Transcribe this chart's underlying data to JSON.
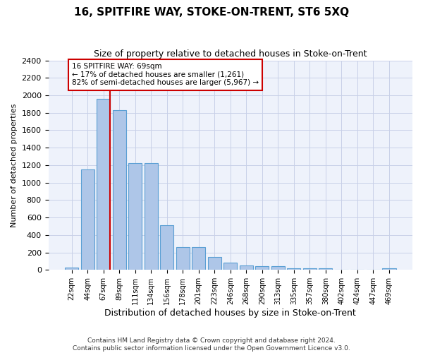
{
  "title": "16, SPITFIRE WAY, STOKE-ON-TRENT, ST6 5XQ",
  "subtitle": "Size of property relative to detached houses in Stoke-on-Trent",
  "xlabel": "Distribution of detached houses by size in Stoke-on-Trent",
  "ylabel": "Number of detached properties",
  "categories": [
    "22sqm",
    "44sqm",
    "67sqm",
    "89sqm",
    "111sqm",
    "134sqm",
    "156sqm",
    "178sqm",
    "201sqm",
    "223sqm",
    "246sqm",
    "268sqm",
    "290sqm",
    "313sqm",
    "335sqm",
    "357sqm",
    "380sqm",
    "402sqm",
    "424sqm",
    "447sqm",
    "469sqm"
  ],
  "values": [
    30,
    1150,
    1960,
    1830,
    1220,
    1220,
    510,
    265,
    265,
    150,
    80,
    50,
    45,
    45,
    20,
    15,
    20,
    5,
    5,
    5,
    20
  ],
  "bar_color": "#aec6e8",
  "bar_edge_color": "#5a9fd4",
  "property_bar_index": 2,
  "annotation_title": "16 SPITFIRE WAY: 69sqm",
  "annotation_line1": "← 17% of detached houses are smaller (1,261)",
  "annotation_line2": "82% of semi-detached houses are larger (5,967) →",
  "annotation_box_edgecolor": "#cc0000",
  "ylim": [
    0,
    2400
  ],
  "yticks": [
    0,
    200,
    400,
    600,
    800,
    1000,
    1200,
    1400,
    1600,
    1800,
    2000,
    2200,
    2400
  ],
  "footer_line1": "Contains HM Land Registry data © Crown copyright and database right 2024.",
  "footer_line2": "Contains public sector information licensed under the Open Government Licence v3.0.",
  "bg_color": "#eef2fb",
  "grid_color": "#c8d0e8"
}
